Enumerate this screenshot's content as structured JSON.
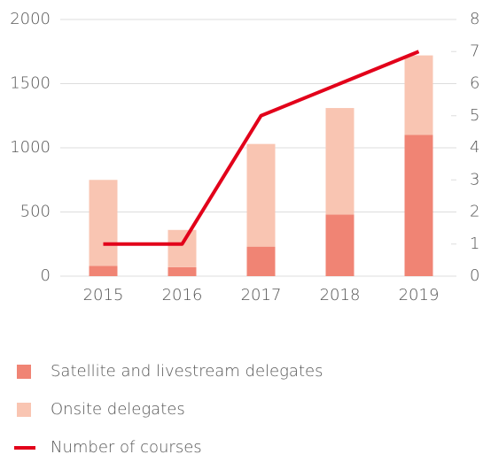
{
  "chart_data": {
    "type": "bar",
    "stacked": true,
    "categories": [
      "2015",
      "2016",
      "2017",
      "2018",
      "2019"
    ],
    "series": [
      {
        "name": "Satellite and livestream delegates",
        "type": "bar",
        "color": "#f08474",
        "values": [
          80,
          70,
          230,
          480,
          1100
        ]
      },
      {
        "name": "Onsite delegates",
        "type": "bar",
        "color": "#f9c5b2",
        "values": [
          670,
          290,
          800,
          830,
          620
        ]
      },
      {
        "name": "Number of courses",
        "type": "line",
        "axis": "y2",
        "color": "#e2001a",
        "values": [
          1,
          1,
          5,
          6,
          7
        ]
      }
    ],
    "ylim": [
      0,
      2000
    ],
    "yticks": [
      0,
      500,
      1000,
      1500,
      2000
    ],
    "y2lim": [
      0,
      8
    ],
    "y2ticks": [
      0,
      1,
      2,
      3,
      4,
      5,
      6,
      7,
      8
    ],
    "grid": true,
    "legend": "bottom"
  }
}
